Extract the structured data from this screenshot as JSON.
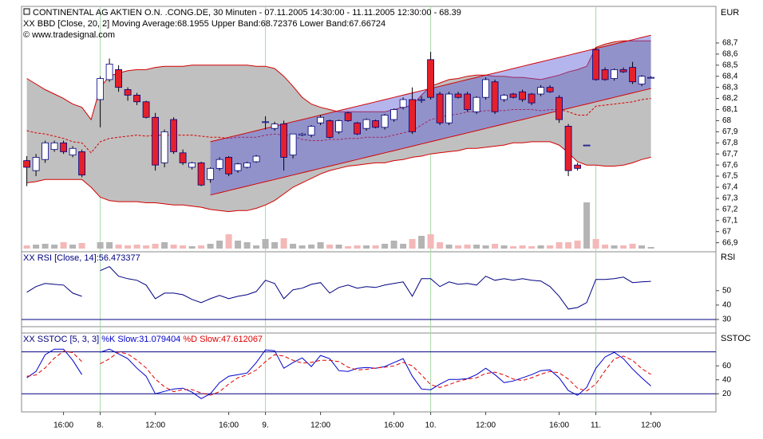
{
  "chart_data": [
    {
      "type": "candlestick",
      "title": "CONTINENTAL AG AKTIEN O.N. .CONG.DE, 30 Minuten - 07.11.2005 14:30:00 - 11.11.2005 12:30:00 - 68.39",
      "subtitle": "XX BBD [Close, 20, 2] Moving Average:68.1955 Upper Band:68.72376 Lower Band:67.66724",
      "subtitle_color": "#cc0000",
      "source": "© www.tradesignal.com",
      "y_axis_label": "EUR",
      "categories": [
        null,
        null,
        null,
        null,
        "16:00",
        null,
        null,
        null,
        "8.",
        null,
        null,
        null,
        null,
        null,
        "12:00",
        null,
        null,
        null,
        null,
        null,
        null,
        null,
        "16:00",
        null,
        null,
        null,
        "9.",
        null,
        null,
        null,
        null,
        null,
        "12:00",
        null,
        null,
        null,
        null,
        null,
        null,
        null,
        "16:00",
        null,
        null,
        null,
        "10.",
        null,
        null,
        null,
        null,
        null,
        "12:00",
        null,
        null,
        null,
        null,
        null,
        null,
        null,
        "16:00",
        null,
        null,
        null,
        "11.",
        null,
        null,
        null,
        null,
        null,
        "12:00"
      ],
      "open": [
        67.64,
        67.55,
        67.65,
        67.74,
        67.8,
        67.69,
        67.72,
        null,
        68.19,
        68.37,
        68.46,
        68.28,
        68.23,
        68.17,
        68.03,
        67.62,
        68.01,
        67.71,
        67.58,
        67.62,
        67.47,
        67.57,
        67.67,
        67.55,
        67.58,
        67.63,
        67.99,
        67.93,
        67.97,
        67.69,
        67.87,
        67.87,
        67.98,
        68.0,
        67.9,
        68.07,
        67.98,
        67.93,
        68.0,
        67.94,
        68.01,
        68.12,
        68.19,
        68.19,
        68.55,
        68.24,
        67.98,
        68.24,
        68.24,
        68.08,
        68.21,
        68.35,
        68.19,
        68.24,
        68.26,
        68.24,
        68.24,
        68.3,
        68.21,
        67.95,
        67.6,
        67.78,
        68.64,
        68.46,
        68.38,
        68.46,
        68.48,
        68.33,
        68.39
      ],
      "high": [
        67.68,
        67.7,
        67.82,
        67.82,
        67.82,
        67.77,
        67.74,
        null,
        68.4,
        68.56,
        68.5,
        68.3,
        68.25,
        68.18,
        68.07,
        67.92,
        68.03,
        67.74,
        67.63,
        67.63,
        67.58,
        67.67,
        67.68,
        67.62,
        67.63,
        67.69,
        68.04,
        67.99,
        68.0,
        67.88,
        67.89,
        67.96,
        68.05,
        68.01,
        68.01,
        68.08,
        67.99,
        68.02,
        68.01,
        68.06,
        68.11,
        68.21,
        68.3,
        68.22,
        68.62,
        68.26,
        68.26,
        68.26,
        68.26,
        68.22,
        68.39,
        68.37,
        68.24,
        68.25,
        68.28,
        68.25,
        68.32,
        68.32,
        68.23,
        67.97,
        67.62,
        67.78,
        68.66,
        68.48,
        68.47,
        68.48,
        68.53,
        68.41,
        68.4
      ],
      "low": [
        67.41,
        67.5,
        67.62,
        67.72,
        67.7,
        67.67,
        67.49,
        null,
        67.94,
        68.35,
        68.26,
        68.18,
        68.14,
        68.02,
        67.55,
        67.58,
        67.7,
        67.6,
        67.56,
        67.41,
        67.44,
        67.55,
        67.5,
        67.53,
        67.57,
        67.62,
        67.92,
        67.91,
        67.55,
        67.66,
        67.86,
        67.85,
        67.96,
        67.84,
        67.88,
        67.99,
        67.87,
        67.91,
        67.93,
        67.92,
        67.99,
        68.1,
        67.88,
        68.16,
        68.19,
        67.96,
        67.96,
        68.2,
        68.08,
        68.06,
        68.19,
        68.06,
        68.17,
        68.2,
        68.17,
        68.14,
        68.22,
        68.25,
        67.98,
        67.5,
        67.55,
        67.78,
        68.36,
        68.36,
        68.36,
        68.43,
        68.33,
        68.31,
        68.38
      ],
      "close": [
        67.58,
        67.67,
        67.8,
        67.8,
        67.72,
        67.75,
        67.51,
        null,
        68.38,
        68.51,
        68.3,
        68.23,
        68.17,
        68.03,
        67.6,
        67.9,
        67.72,
        67.62,
        67.62,
        67.42,
        67.57,
        67.65,
        67.52,
        67.61,
        67.62,
        67.68,
        67.99,
        67.97,
        67.67,
        67.88,
        67.88,
        67.95,
        68.03,
        67.85,
        68.0,
        68.0,
        67.88,
        68.01,
        67.94,
        68.05,
        68.1,
        68.19,
        67.9,
        68.19,
        68.21,
        67.98,
        68.24,
        68.21,
        68.1,
        68.21,
        68.37,
        68.08,
        68.23,
        68.21,
        68.19,
        68.16,
        68.3,
        68.26,
        68.01,
        67.55,
        67.57,
        67.78,
        68.37,
        68.37,
        68.46,
        68.44,
        68.35,
        68.4,
        68.39
      ],
      "candle_colors": {
        "up": "#ffffff",
        "down": "#e4202a",
        "outline": "#00007f",
        "wick": "#000000"
      },
      "bollinger": {
        "upper": [
          68.38,
          68.33,
          68.28,
          68.24,
          68.2,
          68.15,
          68.12,
          68.01,
          68.3,
          68.4,
          68.43,
          68.45,
          68.46,
          68.46,
          68.48,
          68.49,
          68.49,
          68.49,
          68.5,
          68.5,
          68.5,
          68.5,
          68.5,
          68.5,
          68.5,
          68.49,
          68.49,
          68.47,
          68.4,
          68.31,
          68.21,
          68.15,
          68.12,
          68.1,
          68.08,
          68.08,
          68.08,
          68.08,
          68.08,
          68.08,
          68.1,
          68.12,
          68.14,
          68.23,
          68.31,
          68.34,
          68.37,
          68.38,
          68.4,
          68.41,
          68.41,
          68.4,
          68.4,
          68.39,
          68.39,
          68.38,
          68.37,
          68.39,
          68.41,
          68.44,
          68.46,
          68.49,
          68.66,
          68.69,
          68.71,
          68.72,
          68.72,
          68.72,
          68.72
        ],
        "middle": [
          67.91,
          67.89,
          67.88,
          67.86,
          67.84,
          67.81,
          67.8,
          67.71,
          67.81,
          67.84,
          67.85,
          67.86,
          67.87,
          67.86,
          67.87,
          67.87,
          67.87,
          67.87,
          67.87,
          67.86,
          67.85,
          67.85,
          67.84,
          67.85,
          67.85,
          67.85,
          67.87,
          67.88,
          67.87,
          67.86,
          67.83,
          67.82,
          67.82,
          67.83,
          67.83,
          67.84,
          67.84,
          67.85,
          67.85,
          67.85,
          67.87,
          67.89,
          67.91,
          67.96,
          68.01,
          68.03,
          68.05,
          68.06,
          68.08,
          68.08,
          68.09,
          68.09,
          68.09,
          68.1,
          68.1,
          68.1,
          68.09,
          68.1,
          68.1,
          68.08,
          68.05,
          68.05,
          68.13,
          68.14,
          68.15,
          68.16,
          68.17,
          68.19,
          68.2
        ],
        "lower": [
          67.44,
          67.45,
          67.47,
          67.47,
          67.47,
          67.47,
          67.47,
          67.4,
          67.31,
          67.28,
          67.27,
          67.27,
          67.27,
          67.26,
          67.26,
          67.25,
          67.24,
          67.24,
          67.23,
          67.22,
          67.2,
          67.19,
          67.18,
          67.19,
          67.19,
          67.21,
          67.24,
          67.28,
          67.34,
          67.4,
          67.44,
          67.48,
          67.52,
          67.55,
          67.57,
          67.59,
          67.6,
          67.61,
          67.62,
          67.62,
          67.64,
          67.65,
          67.67,
          67.68,
          67.7,
          67.71,
          67.72,
          67.73,
          67.75,
          67.75,
          67.76,
          67.77,
          67.78,
          67.8,
          67.8,
          67.81,
          67.81,
          67.81,
          67.78,
          67.71,
          67.63,
          67.6,
          67.6,
          67.59,
          67.59,
          67.6,
          67.62,
          67.65,
          67.67
        ],
        "line_color": "#d40000",
        "fill": "#c0c0c0"
      },
      "channel": {
        "upper": [
          null,
          null,
          null,
          null,
          null,
          null,
          null,
          null,
          null,
          null,
          null,
          null,
          null,
          null,
          null,
          null,
          null,
          null,
          null,
          null,
          67.81,
          67.83,
          67.85,
          67.87,
          67.89,
          67.91,
          67.93,
          67.95,
          67.97,
          67.99,
          68.01,
          68.03,
          68.05,
          68.07,
          68.09,
          68.11,
          68.13,
          68.15,
          68.17,
          68.19,
          68.21,
          68.23,
          68.25,
          68.27,
          68.29,
          68.31,
          68.33,
          68.35,
          68.37,
          68.39,
          68.41,
          68.43,
          68.45,
          68.47,
          68.49,
          68.51,
          68.53,
          68.55,
          68.57,
          68.59,
          68.61,
          68.63,
          68.65,
          68.67,
          68.69,
          68.71,
          68.73,
          68.75,
          68.77
        ],
        "lower": [
          null,
          null,
          null,
          null,
          null,
          null,
          null,
          null,
          null,
          null,
          null,
          null,
          null,
          null,
          null,
          null,
          null,
          null,
          null,
          null,
          67.33,
          67.35,
          67.37,
          67.39,
          67.41,
          67.43,
          67.45,
          67.47,
          67.49,
          67.51,
          67.53,
          67.55,
          67.57,
          67.59,
          67.61,
          67.63,
          67.65,
          67.67,
          67.69,
          67.71,
          67.73,
          67.75,
          67.77,
          67.79,
          67.81,
          67.83,
          67.85,
          67.87,
          67.89,
          67.91,
          67.93,
          67.95,
          67.97,
          67.99,
          68.01,
          68.03,
          68.05,
          68.07,
          68.09,
          68.11,
          68.13,
          68.15,
          68.17,
          68.19,
          68.21,
          68.23,
          68.25,
          68.27,
          68.29
        ],
        "line_color": "#d40000",
        "fill": "#5a5ad8"
      },
      "volume": {
        "values": [
          4,
          5,
          6,
          5,
          8,
          5,
          7,
          null,
          8,
          8,
          5,
          4,
          5,
          4,
          6,
          8,
          5,
          4,
          3,
          4,
          6,
          10,
          18,
          10,
          8,
          4,
          12,
          8,
          13,
          6,
          4,
          5,
          8,
          5,
          5,
          3,
          4,
          4,
          4,
          6,
          10,
          6,
          12,
          16,
          18,
          8,
          5,
          4,
          5,
          5,
          4,
          6,
          4,
          3,
          4,
          3,
          4,
          4,
          8,
          8,
          10,
          58,
          12,
          5,
          4,
          4,
          6,
          4,
          2
        ],
        "ylim": [
          0,
          60
        ],
        "up_color": "#b4b4b4",
        "down_color": "#f4b8b8"
      },
      "ylim": [
        66.84,
        69.03
      ],
      "yticks": [
        {
          "value": 68.7,
          "label": "68,7"
        },
        {
          "value": 68.6,
          "label": "68,6"
        },
        {
          "value": 68.5,
          "label": "68,5"
        },
        {
          "value": 68.4,
          "label": "68,4"
        },
        {
          "value": 68.3,
          "label": "68,3"
        },
        {
          "value": 68.2,
          "label": "68,2"
        },
        {
          "value": 68.1,
          "label": "68,1"
        },
        68,
        {
          "value": 67.9,
          "label": "67,9"
        },
        {
          "value": 67.8,
          "label": "67,8"
        },
        {
          "value": 67.7,
          "label": "67,7"
        },
        {
          "value": 67.6,
          "label": "67,6"
        },
        {
          "value": 67.5,
          "label": "67,5"
        },
        {
          "value": 67.4,
          "label": "67,4"
        },
        {
          "value": 67.3,
          "label": "67,3"
        },
        {
          "value": 67.2,
          "label": "67,2"
        },
        {
          "value": 67.1,
          "label": "67,1"
        },
        67,
        {
          "value": 66.9,
          "label": "66,9"
        }
      ]
    },
    {
      "type": "line",
      "title_parts": [
        "XX RSI [Close, 14]:56.473377"
      ],
      "title_colors": [
        "#000080"
      ],
      "y_axis_label": "RSI",
      "series": [
        {
          "color": "#000080",
          "values": [
            48.9,
            52.8,
            55.0,
            54.4,
            53.9,
            48.3,
            46.1,
            null,
            63.9,
            66.7,
            60.0,
            58.3,
            57.2,
            53.9,
            44.4,
            48.3,
            48.3,
            47.2,
            43.9,
            41.7,
            44.4,
            46.7,
            44.4,
            46.1,
            47.2,
            49.4,
            57.2,
            55.0,
            44.4,
            50.6,
            51.7,
            54.4,
            55.6,
            48.3,
            52.2,
            53.9,
            51.7,
            52.8,
            52.2,
            53.9,
            55.0,
            56.1,
            46.1,
            58.3,
            58.3,
            52.8,
            56.1,
            54.4,
            55.0,
            53.9,
            60.0,
            57.2,
            58.3,
            57.2,
            58.3,
            57.2,
            56.7,
            52.8,
            46.1,
            37.2,
            38.3,
            41.7,
            57.8,
            57.8,
            58.3,
            59.4,
            55.6,
            56.1,
            56.5
          ]
        }
      ],
      "ylim": [
        25,
        77
      ],
      "yticks": [
        50,
        40,
        30
      ],
      "levels": [
        30
      ],
      "level_color": "#000080"
    },
    {
      "type": "line",
      "title_parts": [
        "XX SSTOC [5, 3, 3]",
        "%K Slow:31.079404",
        "%D Slow:47.612067"
      ],
      "title_colors": [
        "#000080",
        "#0000cc",
        "#e00000"
      ],
      "y_axis_label": "SSTOC",
      "series": [
        {
          "color": "#0000cc",
          "values": [
            42.9,
            52.0,
            76.0,
            84.0,
            84.0,
            68.0,
            47.4,
            null,
            79.4,
            84.0,
            77.1,
            70.3,
            56.6,
            45.1,
            20.0,
            23.4,
            26.9,
            28.0,
            22.3,
            13.1,
            20.0,
            36.0,
            45.1,
            47.4,
            49.7,
            64.6,
            82.9,
            81.7,
            56.6,
            64.6,
            71.4,
            58.9,
            74.9,
            70.3,
            53.1,
            52.0,
            56.6,
            57.7,
            56.6,
            58.9,
            64.6,
            70.3,
            45.1,
            26.9,
            25.7,
            33.7,
            40.6,
            40.6,
            41.7,
            47.4,
            56.6,
            47.4,
            36.0,
            38.3,
            42.9,
            47.4,
            53.1,
            54.3,
            42.9,
            24.6,
            17.7,
            29.1,
            56.6,
            72.6,
            79.4,
            70.3,
            55.4,
            42.9,
            31.1
          ]
        },
        {
          "color": "#e00000",
          "dashed": true,
          "values": [
            45,
            47,
            57,
            71,
            81,
            79,
            66,
            null,
            63,
            70,
            80,
            77,
            68,
            57,
            41,
            30,
            23,
            26,
            26,
            21,
            18,
            23,
            34,
            43,
            47,
            54,
            66,
            76,
            74,
            68,
            64,
            65,
            68,
            68,
            66,
            58,
            54,
            55,
            57,
            58,
            60,
            65,
            60,
            47,
            33,
            29,
            33,
            38,
            41,
            43,
            49,
            51,
            47,
            41,
            39,
            43,
            48,
            52,
            50,
            41,
            28,
            24,
            34,
            53,
            70,
            74,
            68,
            56,
            47.6
          ]
        }
      ],
      "ylim": [
        -6,
        107
      ],
      "yticks": [
        60,
        40,
        20
      ],
      "levels": [
        20,
        80
      ],
      "level_color": "#000080"
    }
  ]
}
